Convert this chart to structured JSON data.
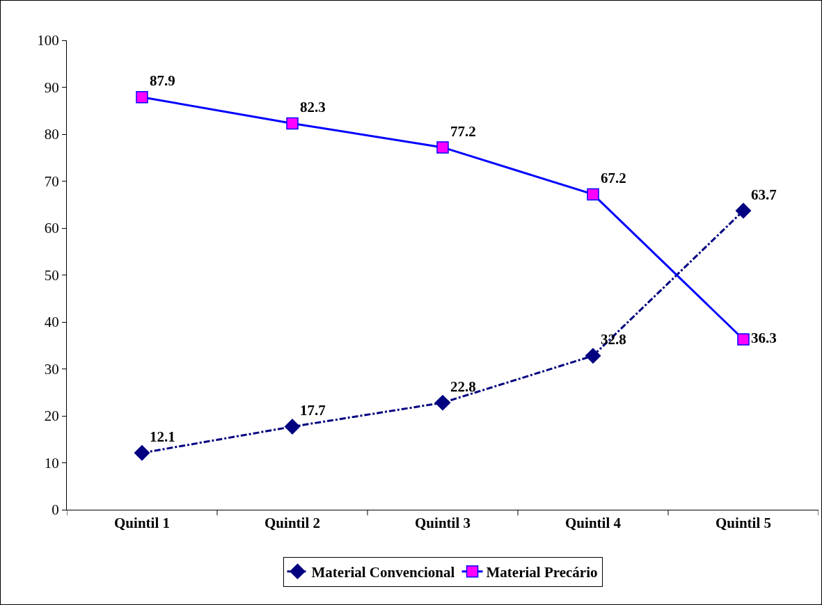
{
  "chart_data": {
    "type": "line",
    "categories": [
      "Quintil 1",
      "Quintil 2",
      "Quintil 3",
      "Quintil 4",
      "Quintil 5"
    ],
    "series": [
      {
        "name": "Material Convencional",
        "color": "#000080",
        "values": [
          12.1,
          17.7,
          22.8,
          32.8,
          63.7
        ],
        "marker": "diamond",
        "line_style": "dashed"
      },
      {
        "name": "Material Precário",
        "color": "#0000ff",
        "colors": [
          "#ff00ff",
          "#ff00ff",
          "#ff00ff",
          "#ff00ff",
          "#ff00ff"
        ],
        "values": [
          87.9,
          82.3,
          77.2,
          67.2,
          36.3
        ],
        "marker": "square",
        "line_style": "solid"
      }
    ],
    "ylim": [
      0,
      100
    ],
    "yticks": [
      0,
      10,
      20,
      30,
      40,
      50,
      60,
      70,
      80,
      90,
      100
    ],
    "grid": false,
    "legend": "bottom",
    "data_labels": true
  }
}
